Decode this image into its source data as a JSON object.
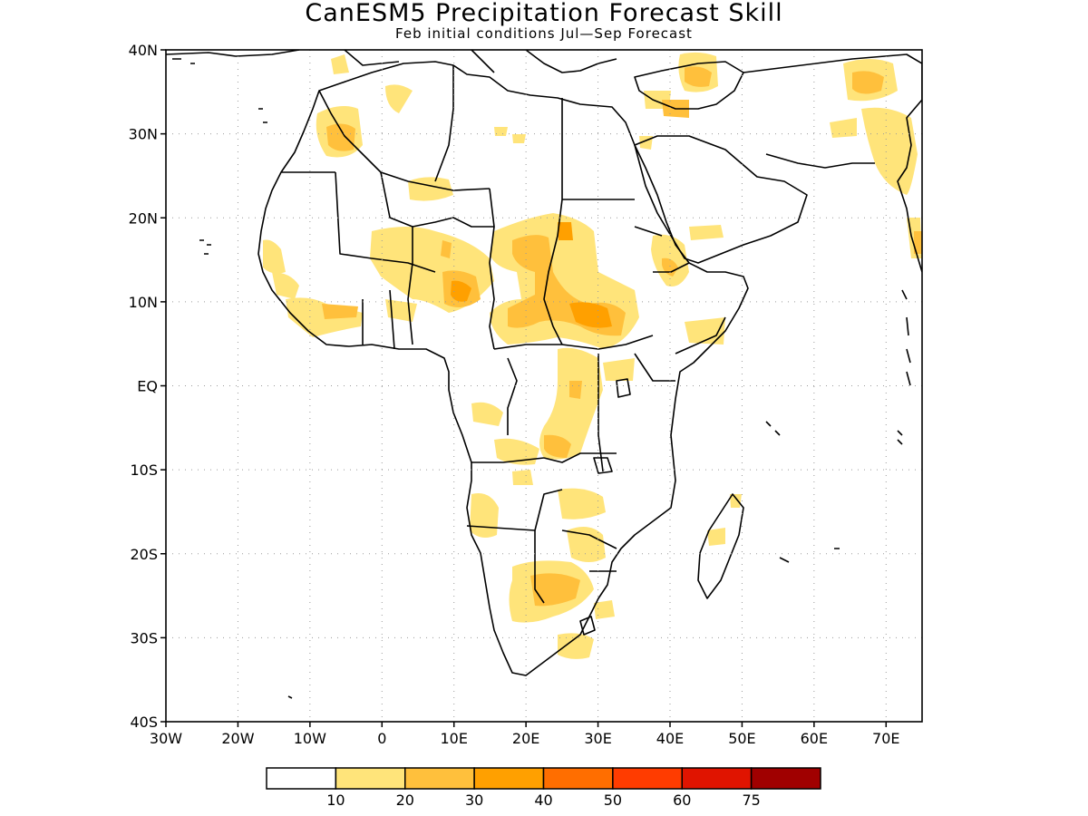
{
  "title": "CanESM5 Precipitation Forecast Skill",
  "subtitle": "Feb initial conditions  Jul—Sep Forecast",
  "map": {
    "lon_range": [
      -30,
      75
    ],
    "lat_range": [
      -40,
      40
    ],
    "lat_ticks": [
      {
        "value": 40,
        "label": "40N"
      },
      {
        "value": 30,
        "label": "30N"
      },
      {
        "value": 20,
        "label": "20N"
      },
      {
        "value": 10,
        "label": "10N"
      },
      {
        "value": 0,
        "label": "EQ"
      },
      {
        "value": -10,
        "label": "10S"
      },
      {
        "value": -20,
        "label": "20S"
      },
      {
        "value": -30,
        "label": "30S"
      },
      {
        "value": -40,
        "label": "40S"
      }
    ],
    "lon_ticks": [
      {
        "value": -30,
        "label": "30W"
      },
      {
        "value": -20,
        "label": "20W"
      },
      {
        "value": -10,
        "label": "10W"
      },
      {
        "value": 0,
        "label": "0"
      },
      {
        "value": 10,
        "label": "10E"
      },
      {
        "value": 20,
        "label": "20E"
      },
      {
        "value": 30,
        "label": "30E"
      },
      {
        "value": 40,
        "label": "40E"
      },
      {
        "value": 50,
        "label": "50E"
      },
      {
        "value": 60,
        "label": "60E"
      },
      {
        "value": 70,
        "label": "70E"
      }
    ],
    "gridlines": "dotted"
  },
  "legend": {
    "labels": [
      "10",
      "20",
      "30",
      "40",
      "50",
      "60",
      "75"
    ],
    "colors": [
      "#ffffff",
      "#ffe47a",
      "#ffc03c",
      "#ffa000",
      "#ff6e00",
      "#ff3c00",
      "#e01400",
      "#a00000"
    ]
  }
}
